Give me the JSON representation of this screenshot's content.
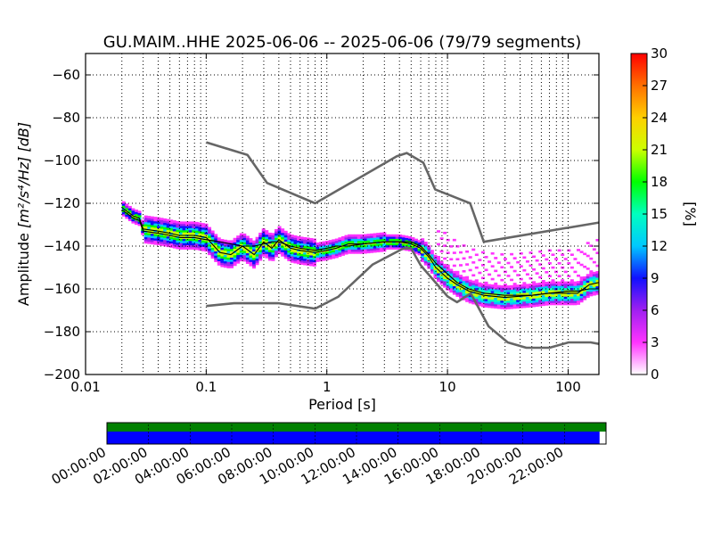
{
  "chart_data": {
    "type": "heatmap",
    "title": "GU.MAIM..HHE   2025-06-06 -- 2025-06-06  (79/79 segments)",
    "xlabel": "Period [s]",
    "ylabel_prefix": "Amplitude ",
    "ylabel_unit": "[m²/s⁴/Hz] [dB]",
    "x_scale": "log",
    "xlim": [
      0.01,
      180
    ],
    "ylim": [
      -200,
      -50
    ],
    "x_ticks": [
      0.01,
      0.1,
      1,
      10,
      100
    ],
    "x_tick_labels": [
      "0.01",
      "0.1",
      "1",
      "10",
      "100"
    ],
    "y_ticks": [
      -200,
      -180,
      -160,
      -140,
      -120,
      -100,
      -80,
      -60
    ],
    "y_tick_labels": [
      "−200",
      "−180",
      "−160",
      "−140",
      "−120",
      "−100",
      "−80",
      "−60"
    ],
    "grid": true,
    "colorbar": {
      "label": "[%]",
      "range": [
        0,
        30
      ],
      "ticks": [
        0,
        3,
        6,
        9,
        12,
        15,
        18,
        21,
        24,
        27,
        30
      ],
      "tick_labels": [
        "0",
        "3",
        "6",
        "9",
        "12",
        "15",
        "18",
        "21",
        "24",
        "27",
        "30"
      ],
      "colors": [
        "#ffffff",
        "#ff33ff",
        "#a020f0",
        "#1010ff",
        "#00c8ff",
        "#00ffc0",
        "#00ff00",
        "#ccff00",
        "#ffd000",
        "#ff7000",
        "#ff0000"
      ]
    },
    "high_noise_model": {
      "period": [
        0.1,
        0.22,
        0.32,
        0.8,
        3.8,
        4.6,
        6.3,
        7.9,
        15.4,
        20,
        180
      ],
      "db": [
        -91.5,
        -97.4,
        -110.5,
        -120,
        -98,
        -96.5,
        -101,
        -113.5,
        -120,
        -138,
        -129
      ]
    },
    "low_noise_model": {
      "period": [
        0.1,
        0.17,
        0.4,
        0.8,
        1.24,
        2.4,
        4.3,
        5,
        6,
        10,
        12,
        15.6,
        21.9,
        31.6,
        45,
        70,
        101,
        154,
        180
      ],
      "db": [
        -168,
        -166.7,
        -166.7,
        -169.2,
        -163.7,
        -148.6,
        -141.1,
        -141.1,
        -149,
        -163.5,
        -166.2,
        -162.1,
        -177.5,
        -185,
        -187.5,
        -187.5,
        -185,
        -185,
        -185.7
      ]
    },
    "mean_psd": {
      "period": [
        0.02,
        0.025,
        0.028,
        0.03,
        0.04,
        0.05,
        0.06,
        0.08,
        0.1,
        0.13,
        0.16,
        0.2,
        0.25,
        0.3,
        0.35,
        0.4,
        0.5,
        0.6,
        0.8,
        1.0,
        1.2,
        1.5,
        2.0,
        3.0,
        4.0,
        5.0,
        6.0,
        7.0,
        8.0,
        10,
        12,
        15,
        20,
        30,
        50,
        70,
        100,
        120,
        150,
        180
      ],
      "db": [
        -123,
        -127,
        -128,
        -133,
        -134,
        -135,
        -136,
        -136,
        -137,
        -138,
        -139,
        -140,
        -140,
        -139,
        -138,
        -138,
        -140,
        -141,
        -142,
        -141,
        -140,
        -140,
        -139,
        -138,
        -138,
        -138,
        -140,
        -144,
        -148,
        -153,
        -157,
        -160,
        -162,
        -163,
        -163,
        -162,
        -161,
        -161,
        -160,
        -160
      ]
    },
    "median_psd": {
      "period": [
        0.02,
        0.025,
        0.028,
        0.03,
        0.04,
        0.05,
        0.06,
        0.08,
        0.1,
        0.13,
        0.16,
        0.2,
        0.25,
        0.3,
        0.35,
        0.4,
        0.5,
        0.6,
        0.8,
        1.0,
        1.2,
        1.5,
        2.0,
        3.0,
        4.0,
        5.0,
        6.0,
        7.0,
        8.0,
        10,
        12,
        15,
        20,
        30,
        50,
        70,
        100,
        120,
        150,
        180
      ],
      "db": [
        -122,
        -126,
        -127,
        -132,
        -133,
        -134,
        -135,
        -135,
        -136,
        -143,
        -144,
        -140,
        -144,
        -138,
        -141,
        -137,
        -141,
        -142,
        -143,
        -142,
        -141,
        -139,
        -139,
        -138,
        -138,
        -139,
        -141,
        -145,
        -150,
        -155,
        -158,
        -161,
        -163,
        -164,
        -163,
        -162,
        -162,
        -162,
        -158,
        -157
      ]
    }
  },
  "timeline": {
    "labels": [
      "00:00:00",
      "02:00:00",
      "04:00:00",
      "06:00:00",
      "08:00:00",
      "10:00:00",
      "12:00:00",
      "14:00:00",
      "16:00:00",
      "18:00:00",
      "20:00:00",
      "22:00:00"
    ],
    "data_color": "#008000",
    "segments_color": "#0000ff",
    "data_fraction": 1.0,
    "segments_fraction": 0.987
  }
}
